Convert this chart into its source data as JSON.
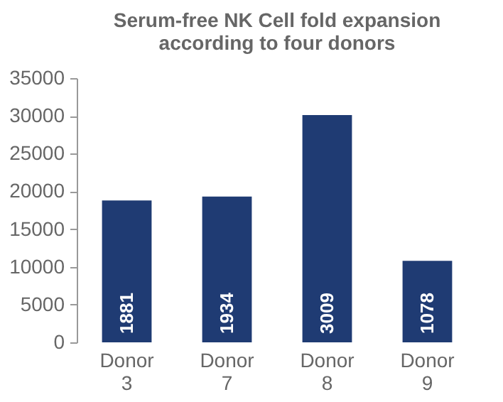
{
  "chart_data": {
    "type": "bar",
    "title": "Serum-free NK Cell fold expansion\naccording to four donors",
    "categories": [
      "Donor 3",
      "Donor 7",
      "Donor 8",
      "Donor 9"
    ],
    "values": [
      18800,
      19300,
      30100,
      10800
    ],
    "annotations": [
      {
        "text": "1881",
        "x": "Donor 3",
        "y": 0
      },
      {
        "text": "1934",
        "x": "Donor 7",
        "y": 0
      },
      {
        "text": "3009",
        "x": "Donor 8",
        "y": 0
      },
      {
        "text": "1078",
        "x": "Donor 9",
        "y": 0
      }
    ],
    "color": "#1f3b73",
    "ylim": [
      0,
      35000
    ],
    "yticks": [
      0,
      5000,
      10000,
      15000,
      20000,
      25000,
      30000,
      35000
    ],
    "grid": false
  }
}
